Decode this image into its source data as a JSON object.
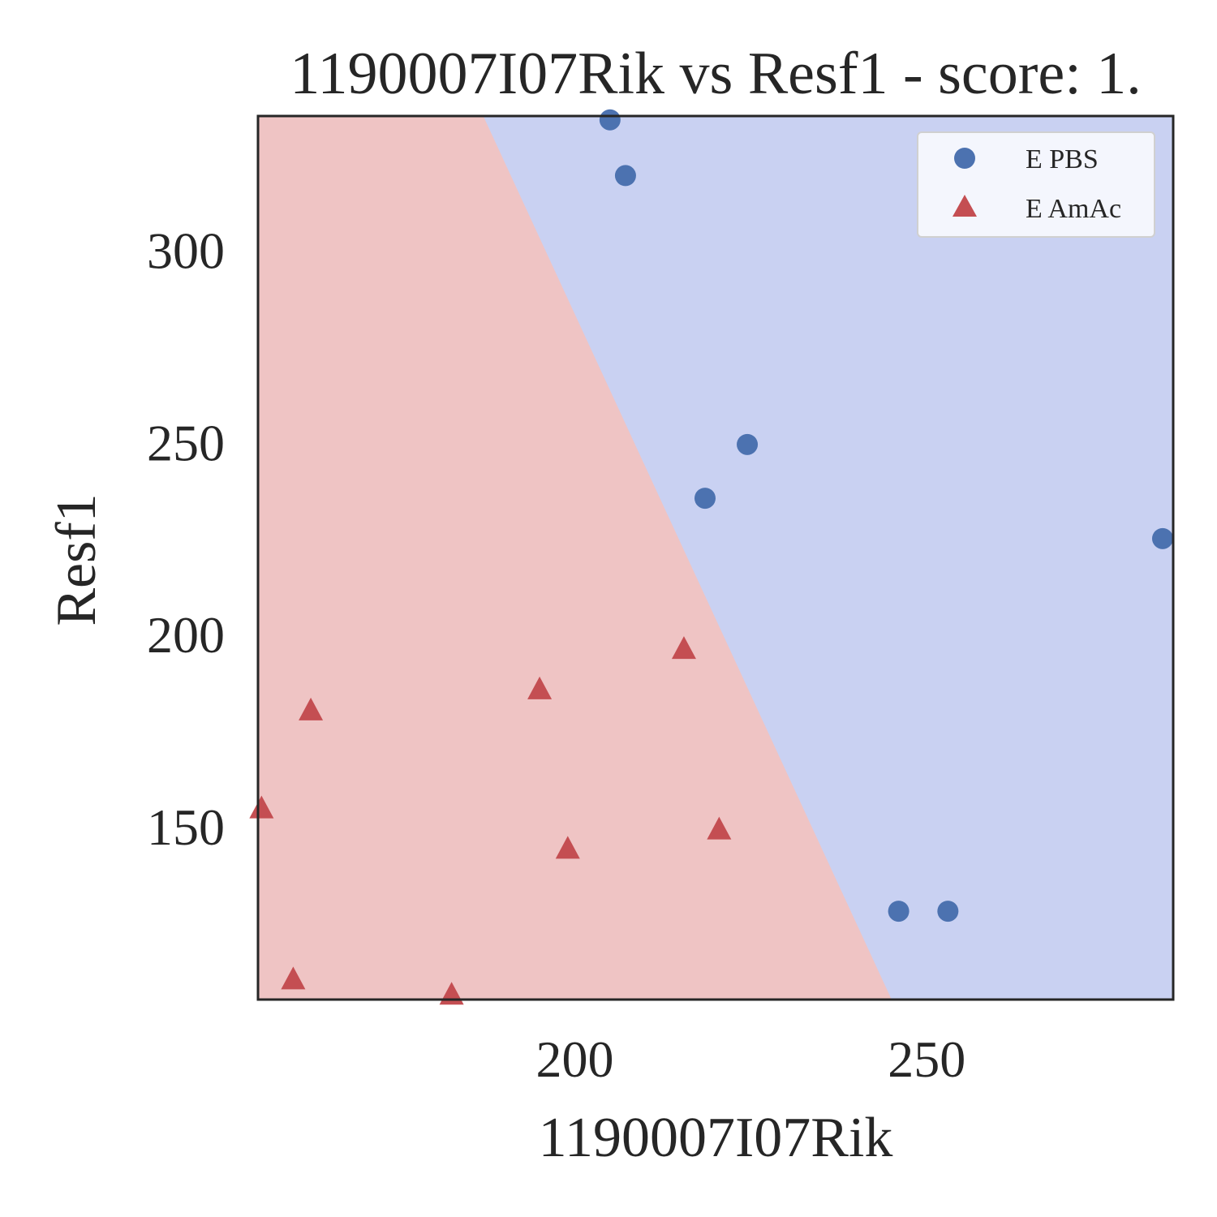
{
  "chart_data": {
    "type": "scatter",
    "title": "1190007I07Rik vs Resf1 - score: 1.",
    "xlabel": "1190007I07Rik",
    "ylabel": "Resf1",
    "xlim": [
      155,
      285
    ],
    "ylim": [
      105,
      335
    ],
    "x_ticks": [
      200,
      250
    ],
    "y_ticks": [
      150,
      200,
      250,
      300
    ],
    "grid": false,
    "legend_position": "top-right",
    "decision_regions": {
      "boundary_line": [
        [
          187,
          335
        ],
        [
          245,
          105
        ]
      ],
      "left_region_color": "#efc4c4",
      "right_region_color": "#c9d1f2"
    },
    "series": [
      {
        "name": "E PBS",
        "marker": "circle",
        "color": "#4c72b0",
        "points": [
          [
            205.0,
            334.0
          ],
          [
            207.2,
            319.5
          ],
          [
            224.5,
            249.5
          ],
          [
            218.5,
            235.5
          ],
          [
            283.5,
            225.0
          ],
          [
            246.0,
            128.0
          ],
          [
            253.0,
            128.0
          ]
        ]
      },
      {
        "name": "E AmAc",
        "marker": "triangle",
        "color": "#c44e52",
        "points": [
          [
            162.5,
            180.0
          ],
          [
            155.5,
            154.5
          ],
          [
            160.0,
            110.0
          ],
          [
            182.5,
            106.0
          ],
          [
            195.0,
            185.5
          ],
          [
            199.0,
            144.0
          ],
          [
            215.5,
            196.0
          ],
          [
            220.5,
            149.0
          ]
        ]
      }
    ]
  }
}
